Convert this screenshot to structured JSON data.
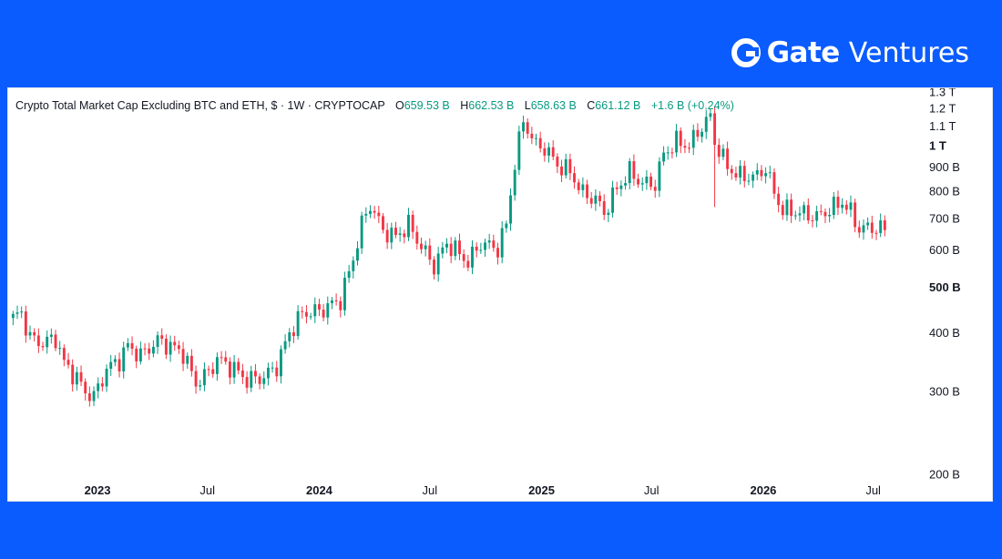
{
  "brand": {
    "logo_text": "Gate",
    "logo_suffix": "Ventures",
    "colors": {
      "band": "#0b5cff",
      "up": "#089981",
      "down": "#f23645"
    }
  },
  "header": {
    "title": "Crypto Total Market Cap Excluding BTC and ETH, $ · 1W · CRYPTOCAP",
    "open_label": "O",
    "open": "659.53 B",
    "high_label": "H",
    "high": "662.53 B",
    "low_label": "L",
    "low": "658.63 B",
    "close_label": "C",
    "close": "661.12 B",
    "change": "+1.6 B (+0.24%)"
  },
  "chart_data": {
    "type": "candlestick",
    "interval": "1W",
    "y_unit": "USD",
    "y_scale": "log",
    "ylim": [
      200,
      1300
    ],
    "y_ticks": [
      {
        "value": 1300,
        "label": "1.3 T",
        "bold": false
      },
      {
        "value": 1200,
        "label": "1.2 T",
        "bold": false
      },
      {
        "value": 1100,
        "label": "1.1 T",
        "bold": false
      },
      {
        "value": 1000,
        "label": "1 T",
        "bold": true
      },
      {
        "value": 900,
        "label": "900 B",
        "bold": false
      },
      {
        "value": 800,
        "label": "800 B",
        "bold": false
      },
      {
        "value": 700,
        "label": "700 B",
        "bold": false
      },
      {
        "value": 600,
        "label": "600 B",
        "bold": false
      },
      {
        "value": 500,
        "label": "500 B",
        "bold": true
      },
      {
        "value": 400,
        "label": "400 B",
        "bold": false
      },
      {
        "value": 300,
        "label": "300 B",
        "bold": false
      },
      {
        "value": 200,
        "label": "200 B",
        "bold": false
      }
    ],
    "x_ticks": [
      {
        "date": "2023-01-01",
        "label": "2023",
        "bold": true
      },
      {
        "date": "2023-07-01",
        "label": "Jul",
        "bold": false
      },
      {
        "date": "2024-01-01",
        "label": "2024",
        "bold": true
      },
      {
        "date": "2024-07-01",
        "label": "Jul",
        "bold": false
      },
      {
        "date": "2025-01-01",
        "label": "2025",
        "bold": true
      },
      {
        "date": "2025-07-01",
        "label": "Jul",
        "bold": false
      },
      {
        "date": "2026-01-01",
        "label": "2026",
        "bold": true
      },
      {
        "date": "2026-07-01",
        "label": "Jul",
        "bold": false
      }
    ],
    "x_range": [
      "2022-08-07",
      "2026-08-23"
    ],
    "close_path": [
      [
        "2022-08-15",
        430
      ],
      [
        "2022-08-29",
        440
      ],
      [
        "2022-09-12",
        390
      ],
      [
        "2022-10-03",
        380
      ],
      [
        "2022-10-24",
        390
      ],
      [
        "2022-11-07",
        345
      ],
      [
        "2022-11-28",
        320
      ],
      [
        "2022-12-12",
        300
      ],
      [
        "2022-12-26",
        292
      ],
      [
        "2023-01-16",
        335
      ],
      [
        "2023-02-06",
        350
      ],
      [
        "2023-02-20",
        375
      ],
      [
        "2023-03-13",
        358
      ],
      [
        "2023-04-10",
        385
      ],
      [
        "2023-05-01",
        375
      ],
      [
        "2023-05-22",
        362
      ],
      [
        "2023-06-12",
        312
      ],
      [
        "2023-07-03",
        330
      ],
      [
        "2023-07-17",
        352
      ],
      [
        "2023-08-14",
        335
      ],
      [
        "2023-09-04",
        318
      ],
      [
        "2023-10-02",
        322
      ],
      [
        "2023-10-23",
        340
      ],
      [
        "2023-11-13",
        400
      ],
      [
        "2023-12-04",
        440
      ],
      [
        "2024-01-01",
        445
      ],
      [
        "2024-02-05",
        470
      ],
      [
        "2024-02-26",
        575
      ],
      [
        "2024-03-11",
        680
      ],
      [
        "2024-03-25",
        750
      ],
      [
        "2024-04-15",
        660
      ],
      [
        "2024-05-06",
        640
      ],
      [
        "2024-05-27",
        680
      ],
      [
        "2024-06-17",
        610
      ],
      [
        "2024-07-08",
        555
      ],
      [
        "2024-07-29",
        620
      ],
      [
        "2024-08-12",
        600
      ],
      [
        "2024-09-02",
        565
      ],
      [
        "2024-09-23",
        620
      ],
      [
        "2024-10-21",
        605
      ],
      [
        "2024-11-04",
        680
      ],
      [
        "2024-11-18",
        920
      ],
      [
        "2024-12-02",
        1130
      ],
      [
        "2024-12-23",
        1000
      ],
      [
        "2025-01-06",
        990
      ],
      [
        "2025-01-27",
        910
      ],
      [
        "2025-02-17",
        880
      ],
      [
        "2025-03-10",
        790
      ],
      [
        "2025-03-31",
        770
      ],
      [
        "2025-04-14",
        720
      ],
      [
        "2025-05-05",
        810
      ],
      [
        "2025-05-26",
        880
      ],
      [
        "2025-06-16",
        830
      ],
      [
        "2025-07-07",
        830
      ],
      [
        "2025-07-21",
        960
      ],
      [
        "2025-08-11",
        1020
      ],
      [
        "2025-09-01",
        1000
      ],
      [
        "2025-09-22",
        1100
      ],
      [
        "2025-10-06",
        1150
      ],
      [
        "2025-10-13",
        1020
      ],
      [
        "2025-11-03",
        900
      ],
      [
        "2025-11-24",
        860
      ],
      [
        "2025-12-08",
        860
      ],
      [
        "2025-12-22",
        860
      ],
      [
        "2026-01-05",
        900
      ],
      [
        "2026-01-19",
        790
      ],
      [
        "2026-02-02",
        730
      ],
      [
        "2026-03-02",
        720
      ],
      [
        "2026-03-30",
        705
      ],
      [
        "2026-04-27",
        740
      ],
      [
        "2026-05-11",
        760
      ],
      [
        "2026-05-25",
        720
      ],
      [
        "2026-06-08",
        665
      ],
      [
        "2026-06-29",
        670
      ],
      [
        "2026-07-20",
        661
      ]
    ],
    "spikes": [
      {
        "date": "2025-10-13",
        "low": 740
      }
    ],
    "last_close": 661.12
  }
}
